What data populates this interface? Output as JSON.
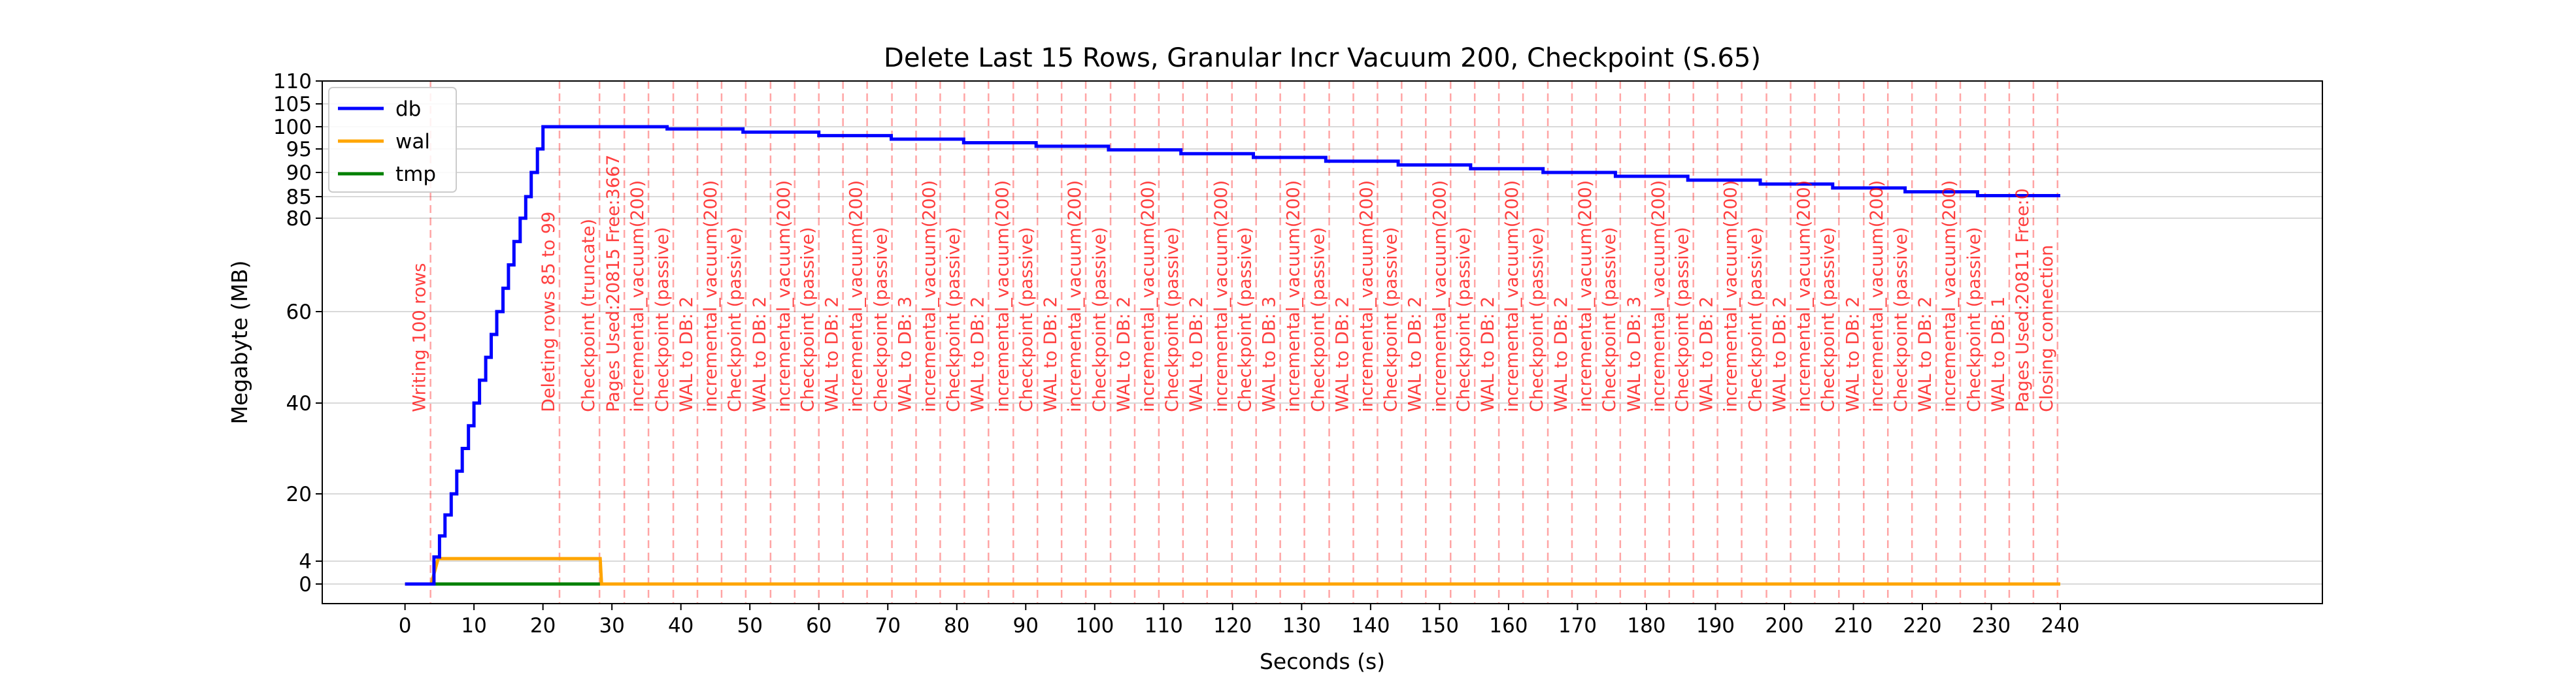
{
  "chart_data": {
    "type": "line",
    "title": "Delete Last 15 Rows, Granular Incr Vacuum 200, Checkpoint (S.65)",
    "xlabel": "Seconds (s)",
    "ylabel": "Megabyte (MB)",
    "xlim": [
      -12,
      278
    ],
    "ylim": [
      -3,
      110
    ],
    "x_ticks": [
      0,
      10,
      20,
      30,
      40,
      50,
      60,
      70,
      80,
      90,
      100,
      110,
      120,
      130,
      140,
      150,
      160,
      170,
      180,
      190,
      200,
      210,
      220,
      230,
      240
    ],
    "y_ticks": [
      0,
      4,
      20,
      40,
      60,
      80,
      85,
      90,
      95,
      100,
      105,
      110
    ],
    "grid": true,
    "legend_position": "top-left",
    "series": [
      {
        "name": "db",
        "color": "#0000ff",
        "x": [
          0,
          4.2,
          4.2,
          5.0,
          5.0,
          5.8,
          5.8,
          6.7,
          6.7,
          7.5,
          7.5,
          8.3,
          8.3,
          9.2,
          9.2,
          10.0,
          10.0,
          10.8,
          10.8,
          11.7,
          11.7,
          12.5,
          12.5,
          13.3,
          13.3,
          14.2,
          14.2,
          15.0,
          15.0,
          15.8,
          15.8,
          16.7,
          16.7,
          17.5,
          17.5,
          18.3,
          18.3,
          19.2,
          19.2,
          20.0,
          20.0,
          38.0,
          38.0,
          49.0,
          49.0,
          60.0,
          60.0,
          70.5,
          70.5,
          81.0,
          81.0,
          91.5,
          91.5,
          102.0,
          102.0,
          112.5,
          112.5,
          123.0,
          123.0,
          133.5,
          133.5,
          144.0,
          144.0,
          154.5,
          154.5,
          165.0,
          165.0,
          175.5,
          175.5,
          186.0,
          186.0,
          196.5,
          196.5,
          207.0,
          207.0,
          217.5,
          217.5,
          228.0,
          228.0,
          240.0
        ],
        "y": [
          0,
          0,
          5,
          5,
          10,
          10,
          15,
          15,
          20,
          20,
          25,
          25,
          30,
          30,
          35,
          35,
          40,
          40,
          45,
          45,
          50,
          50,
          55,
          55,
          60,
          60,
          65,
          65,
          70,
          70,
          75,
          75,
          80,
          80,
          85,
          85,
          90,
          90,
          95,
          95,
          100,
          100,
          99.5,
          99.5,
          98.8,
          98.8,
          98.0,
          98.0,
          97.2,
          97.2,
          96.4,
          96.4,
          95.6,
          95.6,
          94.8,
          94.8,
          94.0,
          94.0,
          93.2,
          93.2,
          92.4,
          92.4,
          91.6,
          91.6,
          90.8,
          90.8,
          90.0,
          90.0,
          89.2,
          89.2,
          88.4,
          88.4,
          87.6,
          87.6,
          86.8,
          86.8,
          86.0,
          86.0,
          85.2,
          85.2
        ]
      },
      {
        "name": "wal",
        "color": "#ffa500",
        "x": [
          0,
          3.8,
          4.8,
          28.3,
          28.5,
          240
        ],
        "y": [
          0,
          0,
          4.6,
          4.6,
          0,
          0
        ]
      },
      {
        "name": "tmp",
        "color": "#008000",
        "x": [
          0,
          240
        ],
        "y": [
          0,
          0
        ]
      }
    ],
    "annotations": [
      {
        "x": 3.7,
        "text": "Writing 100 rows"
      },
      {
        "x": 22.4,
        "text": "Deleting rows 85 to 99"
      },
      {
        "x": 28.2,
        "text": "Checkpoint (truncate)"
      },
      {
        "x": 31.8,
        "text": "Pages Used:20815 Free:3667"
      },
      {
        "x": 35.3,
        "text": "incremental_vacuum(200)"
      },
      {
        "x": 38.9,
        "text": "Checkpoint (passive)"
      },
      {
        "x": 42.4,
        "text": "WAL to DB: 2"
      },
      {
        "x": 45.9,
        "text": "incremental_vacuum(200)"
      },
      {
        "x": 49.4,
        "text": "Checkpoint (passive)"
      },
      {
        "x": 53.0,
        "text": "WAL to DB: 2"
      },
      {
        "x": 56.5,
        "text": "incremental_vacuum(200)"
      },
      {
        "x": 60.0,
        "text": "Checkpoint (passive)"
      },
      {
        "x": 63.5,
        "text": "WAL to DB: 2"
      },
      {
        "x": 67.0,
        "text": "incremental_vacuum(200)"
      },
      {
        "x": 70.6,
        "text": "Checkpoint (passive)"
      },
      {
        "x": 74.1,
        "text": "WAL to DB: 3"
      },
      {
        "x": 77.6,
        "text": "incremental_vacuum(200)"
      },
      {
        "x": 81.1,
        "text": "Checkpoint (passive)"
      },
      {
        "x": 84.6,
        "text": "WAL to DB: 2"
      },
      {
        "x": 88.2,
        "text": "incremental_vacuum(200)"
      },
      {
        "x": 91.7,
        "text": "Checkpoint (passive)"
      },
      {
        "x": 95.2,
        "text": "WAL to DB: 2"
      },
      {
        "x": 98.7,
        "text": "incremental_vacuum(200)"
      },
      {
        "x": 102.3,
        "text": "Checkpoint (passive)"
      },
      {
        "x": 105.8,
        "text": "WAL to DB: 2"
      },
      {
        "x": 109.3,
        "text": "incremental_vacuum(200)"
      },
      {
        "x": 112.8,
        "text": "Checkpoint (passive)"
      },
      {
        "x": 116.3,
        "text": "WAL to DB: 2"
      },
      {
        "x": 119.9,
        "text": "incremental_vacuum(200)"
      },
      {
        "x": 123.4,
        "text": "Checkpoint (passive)"
      },
      {
        "x": 126.9,
        "text": "WAL to DB: 3"
      },
      {
        "x": 130.4,
        "text": "incremental_vacuum(200)"
      },
      {
        "x": 134.0,
        "text": "Checkpoint (passive)"
      },
      {
        "x": 137.5,
        "text": "WAL to DB: 2"
      },
      {
        "x": 141.0,
        "text": "incremental_vacuum(200)"
      },
      {
        "x": 144.5,
        "text": "Checkpoint (passive)"
      },
      {
        "x": 148.0,
        "text": "WAL to DB: 2"
      },
      {
        "x": 151.6,
        "text": "incremental_vacuum(200)"
      },
      {
        "x": 155.1,
        "text": "Checkpoint (passive)"
      },
      {
        "x": 158.6,
        "text": "WAL to DB: 2"
      },
      {
        "x": 162.1,
        "text": "incremental_vacuum(200)"
      },
      {
        "x": 165.7,
        "text": "Checkpoint (passive)"
      },
      {
        "x": 169.2,
        "text": "WAL to DB: 2"
      },
      {
        "x": 172.7,
        "text": "incremental_vacuum(200)"
      },
      {
        "x": 176.2,
        "text": "Checkpoint (passive)"
      },
      {
        "x": 179.8,
        "text": "WAL to DB: 3"
      },
      {
        "x": 183.3,
        "text": "incremental_vacuum(200)"
      },
      {
        "x": 186.8,
        "text": "Checkpoint (passive)"
      },
      {
        "x": 190.3,
        "text": "WAL to DB: 2"
      },
      {
        "x": 193.8,
        "text": "incremental_vacuum(200)"
      },
      {
        "x": 197.4,
        "text": "Checkpoint (passive)"
      },
      {
        "x": 200.9,
        "text": "WAL to DB: 2"
      },
      {
        "x": 204.4,
        "text": "incremental_vacuum(200)"
      },
      {
        "x": 207.9,
        "text": "Checkpoint (passive)"
      },
      {
        "x": 211.5,
        "text": "WAL to DB: 2"
      },
      {
        "x": 215.0,
        "text": "incremental_vacuum(200)"
      },
      {
        "x": 218.5,
        "text": "Checkpoint (passive)"
      },
      {
        "x": 222.0,
        "text": "WAL to DB: 2"
      },
      {
        "x": 225.5,
        "text": "incremental_vacuum(200)"
      },
      {
        "x": 229.1,
        "text": "Checkpoint (passive)"
      },
      {
        "x": 232.6,
        "text": "WAL to DB: 1"
      },
      {
        "x": 236.1,
        "text": "Pages Used:20811 Free:0"
      },
      {
        "x": 239.6,
        "text": "Closing connection"
      }
    ],
    "annotation_color": "#ff0000"
  }
}
